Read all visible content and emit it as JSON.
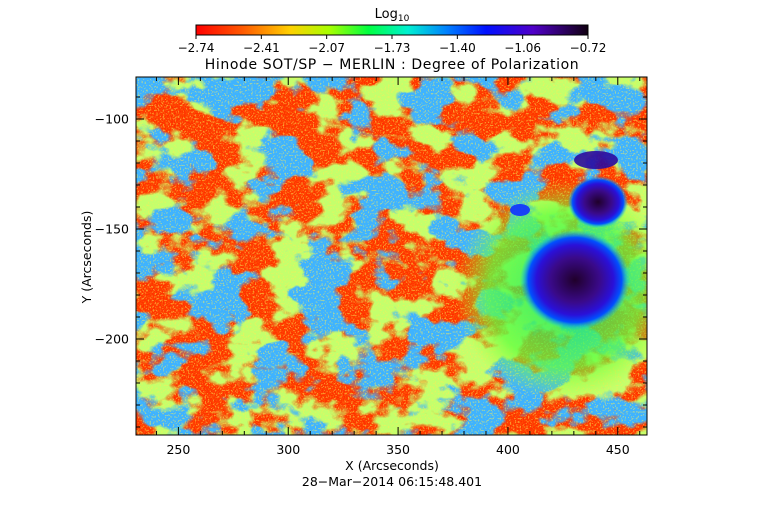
{
  "colorbar": {
    "label_base": "Log",
    "label_sub": "10",
    "ticks": [
      "−2.74",
      "−2.41",
      "−2.07",
      "−1.73",
      "−1.40",
      "−1.06",
      "−0.72"
    ]
  },
  "title": "Hinode SOT/SP − MERLIN : Degree of Polarization",
  "x_axis": {
    "label": "X (Arcseconds)",
    "ticks": [
      "250",
      "300",
      "350",
      "400",
      "450"
    ]
  },
  "y_axis": {
    "label": "Y (Arcseconds)",
    "ticks": [
      "−100",
      "−150",
      "−200"
    ]
  },
  "timestamp": "28−Mar−2014 06:15:48.401"
}
